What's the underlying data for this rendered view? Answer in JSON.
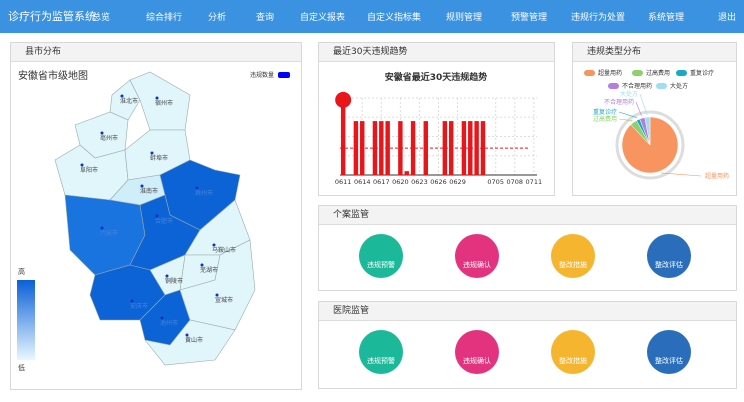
{
  "header": {
    "title": "诊疗行为监管系统",
    "nav": [
      "总览",
      "综合排行",
      "分析",
      "查询",
      "自定义报表",
      "自定义指标集",
      "规则管理",
      "预警管理",
      "违规行为处置",
      "系统管理"
    ],
    "logout": "退出"
  },
  "map_panel": {
    "heading": "县市分布",
    "chart_data": {
      "type": "map",
      "title": "安徽省市级地图",
      "legend": "违规数量",
      "legend_color": "#0000ff",
      "visual_map": {
        "high": "高",
        "low": "低",
        "colors": [
          "#0a5fd8",
          "#e8f8ff"
        ]
      },
      "regions": [
        {
          "name": "淮北市",
          "color": "#e0f6fb"
        },
        {
          "name": "宿州市",
          "color": "#e0f6fb"
        },
        {
          "name": "亳州市",
          "color": "#e0f6fb"
        },
        {
          "name": "阜阳市",
          "color": "#e0f6fb"
        },
        {
          "name": "蚌埠市",
          "color": "#e0f6fb"
        },
        {
          "name": "淮南市",
          "color": "#cfeefa"
        },
        {
          "name": "滁州市",
          "color": "#0b63d6"
        },
        {
          "name": "六安市",
          "color": "#1a74e0"
        },
        {
          "name": "合肥市",
          "color": "#0b63d6"
        },
        {
          "name": "马鞍山市",
          "color": "#e0f6fb"
        },
        {
          "name": "芜湖市",
          "color": "#e0f6fb"
        },
        {
          "name": "铜陵市",
          "color": "#e0f6fb"
        },
        {
          "name": "安庆市",
          "color": "#0b63d6"
        },
        {
          "name": "池州市",
          "color": "#0b63d6"
        },
        {
          "name": "宣城市",
          "color": "#e0f6fb"
        },
        {
          "name": "黄山市",
          "color": "#e0f6fb"
        }
      ]
    }
  },
  "trend_panel": {
    "heading": "最近30天违规趋势",
    "chart_data": {
      "type": "bar",
      "title": "安徽省最近30天违规趋势",
      "color": "#e8161b",
      "grid": true,
      "ylim": [
        0,
        100
      ],
      "categories": [
        "0611",
        null,
        null,
        "0614",
        null,
        null,
        "0617",
        null,
        null,
        "0620",
        null,
        null,
        "0623",
        null,
        null,
        "0626",
        null,
        null,
        "0629",
        null,
        null,
        null,
        null,
        null,
        "0705",
        null,
        null,
        "0708",
        null,
        null,
        "0711"
      ],
      "values": [
        95,
        0,
        70,
        70,
        0,
        70,
        70,
        70,
        0,
        70,
        5,
        70,
        0,
        70,
        0,
        0,
        70,
        70,
        0,
        70,
        70,
        70,
        70,
        0,
        0,
        0,
        0,
        0,
        0,
        0,
        0
      ]
    }
  },
  "type_panel": {
    "heading": "违规类型分布",
    "chart_data": {
      "type": "pie",
      "categories": [
        "超量用药",
        "过高费用",
        "重复诊疗",
        "不合理用药",
        "大处方"
      ],
      "values": [
        88,
        4,
        2,
        3,
        3
      ],
      "colors": [
        "#f7945f",
        "#8fd06b",
        "#19a9c6",
        "#b57ede",
        "#9fdcf5"
      ]
    }
  },
  "case_panel": {
    "heading": "个案监管",
    "items": [
      "违规预警",
      "违规确认",
      "整改措施",
      "整改评估"
    ]
  },
  "hospital_panel": {
    "heading": "医院监管",
    "items": [
      "违规预警",
      "违规确认",
      "整改措施",
      "整改评估"
    ]
  }
}
